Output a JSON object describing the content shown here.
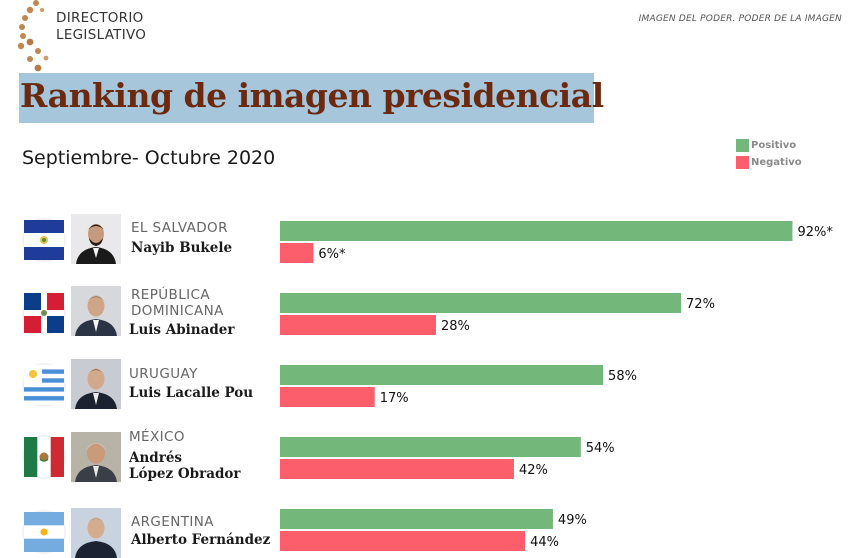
{
  "brand": {
    "line1": "DIRECTORIO",
    "line2": "LEGISLATIVO"
  },
  "tagline": "IMAGEN DEL PODER. PODER DE LA IMAGEN",
  "title": "Ranking de imagen presidencial",
  "subtitle": "Septiembre- Octubre 2020",
  "legend": {
    "positive": "Positivo",
    "negative": "Negativo"
  },
  "colors": {
    "positive": "#73b77a",
    "negative": "#fc5e6c",
    "title_band": "#a6c6dc",
    "logo": "#c0874f"
  },
  "rows": [
    {
      "country_lines": [
        "EL SALVADOR"
      ],
      "name_lines": [
        "Nayib Bukele"
      ],
      "flag": "el-salvador-flag-icon",
      "photo": "nayib-bukele-photo"
    },
    {
      "country_lines": [
        "REPÚBLICA",
        "DOMINICANA"
      ],
      "name_lines": [
        "Luis Abinader"
      ],
      "flag": "dominican-republic-flag-icon",
      "photo": "luis-abinader-photo"
    },
    {
      "country_lines": [
        "URUGUAY"
      ],
      "name_lines": [
        "Luis Lacalle Pou"
      ],
      "flag": "uruguay-flag-icon",
      "photo": "luis-lacalle-pou-photo"
    },
    {
      "country_lines": [
        "MÉXICO"
      ],
      "name_lines": [
        "Andrés",
        "López Obrador"
      ],
      "flag": "mexico-flag-icon",
      "photo": "lopez-obrador-photo"
    },
    {
      "country_lines": [
        "ARGENTINA"
      ],
      "name_lines": [
        "Alberto Fernández"
      ],
      "flag": "argentina-flag-icon",
      "photo": "alberto-fernandez-photo"
    }
  ],
  "chart_data": {
    "type": "bar",
    "orientation": "horizontal",
    "categories": [
      "Nayib Bukele",
      "Luis Abinader",
      "Luis Lacalle Pou",
      "Andrés López Obrador",
      "Alberto Fernández"
    ],
    "series": [
      {
        "name": "Positivo",
        "values": [
          92,
          72,
          58,
          54,
          49
        ],
        "labels": [
          "92%*",
          "72%",
          "58%",
          "54%",
          "49%"
        ]
      },
      {
        "name": "Negativo",
        "values": [
          6,
          28,
          17,
          42,
          44
        ],
        "labels": [
          "6%*",
          "28%",
          "17%",
          "42%",
          "44%"
        ]
      }
    ],
    "xlim": [
      0,
      100
    ],
    "grid": false,
    "legend_position": "top-right"
  }
}
